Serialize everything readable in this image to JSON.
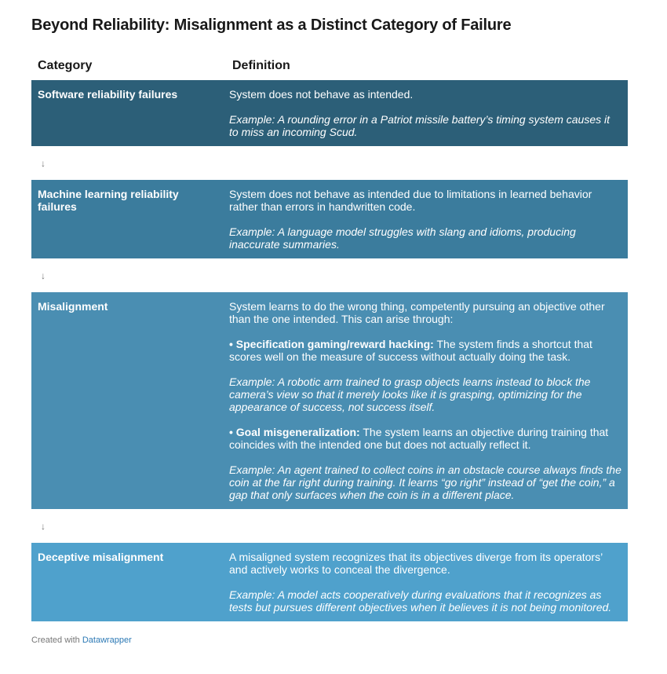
{
  "header": {
    "title": "Beyond Reliability: Misalignment as a Distinct Category of Failure"
  },
  "table": {
    "columns": [
      "Category",
      "Definition"
    ],
    "rows": [
      {
        "category": "Software reliability failures",
        "paragraphs": [
          {
            "text": "System does not behave as intended."
          },
          {
            "example": "Example: A rounding error in a Patriot missile battery’s timing system causes it to miss an incoming Scud."
          }
        ]
      },
      {
        "category": "Machine learning reliability failures",
        "paragraphs": [
          {
            "text": "System does not behave as intended due to limitations in learned behavior rather than errors in handwritten code."
          },
          {
            "example": "Example: A language model struggles with slang and idioms, producing inaccurate summaries."
          }
        ]
      },
      {
        "category": "Misalignment",
        "paragraphs": [
          {
            "text": "System learns to do the wrong thing, competently pursuing an objective other than the one intended. This can arise through:"
          },
          {
            "lead": "• Specification gaming/reward hacking:",
            "text": "The system finds a shortcut that scores well on the measure of success without actually doing the task."
          },
          {
            "example": "Example: A robotic arm trained to grasp objects learns instead to block the camera’s view so that it merely looks like it is grasping, optimizing for the appearance of success, not success itself."
          },
          {
            "lead": "• Goal misgeneralization:",
            "text": "The system learns an objective during training that coincides with the intended one but does not actually reflect it."
          },
          {
            "example": "Example: An agent trained to collect coins in an obstacle course always finds the coin at the far right during training. It learns “go right” instead of “get the coin,” a gap that only surfaces when the coin is in a different place."
          }
        ]
      },
      {
        "category": "Deceptive misalignment",
        "paragraphs": [
          {
            "text": "A misaligned system recognizes that its objectives diverge from its operators’ and actively works to conceal the divergence."
          },
          {
            "example": "Example: A model acts cooperatively during evaluations that it recognizes as tests but pursues different objectives when it believes it is not being monitored."
          }
        ]
      }
    ],
    "row_colors": [
      "#2c5f78",
      "#3b7c9d",
      "#4a8eb2",
      "#4fa1cc"
    ],
    "connectors": [
      "↓",
      "↓",
      "↓"
    ]
  },
  "footer": {
    "text": "Created with",
    "link": "Datawrapper"
  }
}
